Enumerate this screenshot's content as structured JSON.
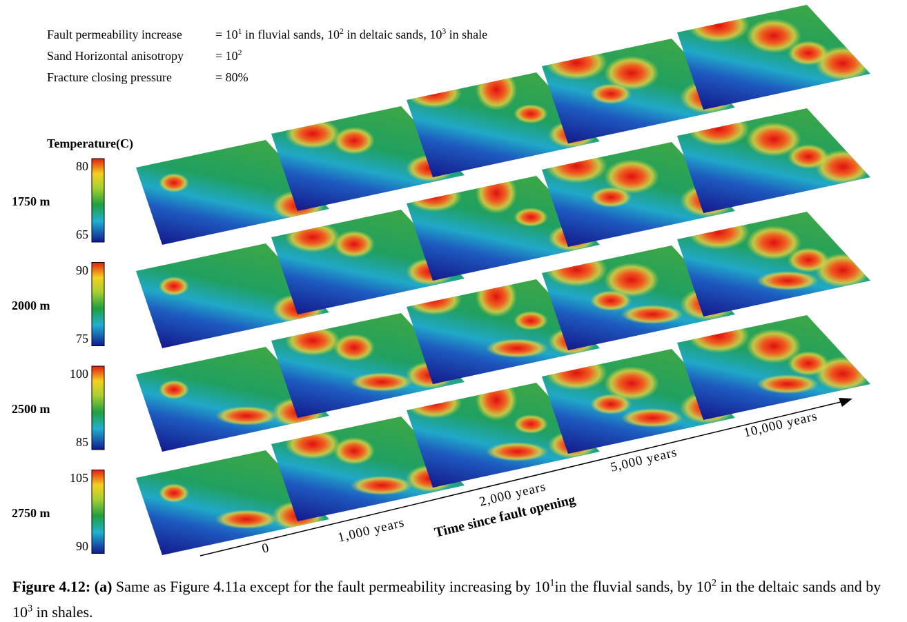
{
  "parameters": [
    {
      "label": "Fault permeability increase",
      "value": [
        "= 10",
        "1",
        " in fluvial sands, 10",
        "2",
        " in deltaic sands, 10",
        "3",
        " in shale"
      ]
    },
    {
      "label": "Sand Horizontal anisotropy",
      "value": [
        "= 10",
        "2"
      ]
    },
    {
      "label": "Fracture closing pressure",
      "value": [
        "= 80%"
      ]
    }
  ],
  "colorbar_title": "Temperature(C)",
  "rows": [
    {
      "depth": "1750 m",
      "max": "80",
      "min": "65"
    },
    {
      "depth": "2000 m",
      "max": "90",
      "min": "75"
    },
    {
      "depth": "2500 m",
      "max": "100",
      "min": "85"
    },
    {
      "depth": "2750 m",
      "max": "105",
      "min": "90"
    }
  ],
  "time_labels": [
    "0",
    "1,000 years",
    "2,000 years",
    "5,000 years",
    "10,000 years"
  ],
  "time_axis_title": "Time since fault opening",
  "caption": {
    "label": "Figure 4.12:",
    "panel": "(a)",
    "text": [
      " Same as Figure 4.11a except for the fault permeability increasing by 10",
      "1",
      "in the fluvial sands, by 10",
      "2",
      " in the deltaic sands and by 10",
      "3",
      "  in shales."
    ]
  }
}
